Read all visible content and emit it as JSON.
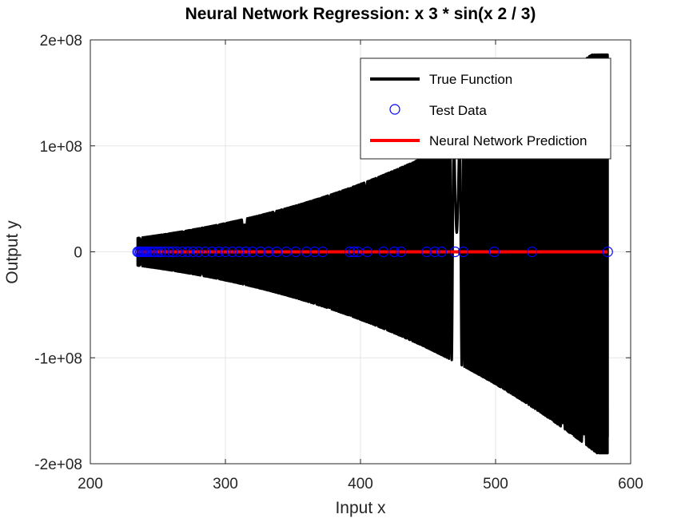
{
  "chart_data": {
    "type": "line",
    "title": "Neural Network Regression: x  3 * sin(x  2 / 3)",
    "xlabel": "Input x",
    "ylabel": "Output y",
    "xlim": [
      200,
      600
    ],
    "ylim": [
      -200000000,
      200000000
    ],
    "x_ticks": [
      200,
      300,
      400,
      500,
      600
    ],
    "x_tick_labels": [
      "200",
      "300",
      "400",
      "500",
      "600"
    ],
    "y_ticks": [
      -200000000,
      -100000000,
      0,
      100000000,
      200000000
    ],
    "y_tick_labels": [
      "-2e+08",
      "-1e+08",
      "0",
      "1e+08",
      "2e+08"
    ],
    "grid": true,
    "legend_position": "top-right",
    "series": [
      {
        "name": "True Function",
        "style": "line",
        "color": "#000000",
        "function": "x^3 * sin(x^2 / 3)",
        "x_range": [
          235,
          583
        ]
      },
      {
        "name": "Test Data",
        "style": "markers",
        "marker": "open-circle",
        "color": "#0000ff",
        "x": [
          235,
          236,
          237,
          238,
          239,
          240,
          241,
          242,
          244,
          246,
          248,
          250,
          252,
          255,
          258,
          261,
          264,
          268,
          272,
          276,
          280,
          285,
          290,
          295,
          300,
          305,
          310,
          315,
          320,
          326,
          332,
          338,
          345,
          352,
          360,
          366,
          372,
          392,
          395,
          398,
          405,
          417,
          425,
          430,
          449,
          455,
          460,
          470,
          476,
          499,
          527,
          583
        ],
        "y": [
          0,
          0,
          0,
          0,
          0,
          0,
          0,
          0,
          0,
          0,
          0,
          0,
          0,
          0,
          0,
          0,
          0,
          0,
          0,
          0,
          0,
          0,
          0,
          0,
          0,
          0,
          0,
          0,
          0,
          0,
          0,
          0,
          0,
          0,
          0,
          0,
          0,
          0,
          0,
          0,
          0,
          0,
          0,
          0,
          0,
          0,
          0,
          0,
          0,
          0,
          0,
          0
        ]
      },
      {
        "name": "Neural Network Prediction",
        "style": "line",
        "color": "#ff0000",
        "x": [
          235,
          583
        ],
        "y": [
          0,
          0
        ]
      }
    ]
  }
}
